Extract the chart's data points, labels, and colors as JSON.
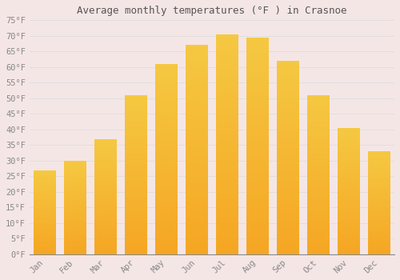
{
  "title": "Average monthly temperatures (°F ) in Crasnoe",
  "months": [
    "Jan",
    "Feb",
    "Mar",
    "Apr",
    "May",
    "Jun",
    "Jul",
    "Aug",
    "Sep",
    "Oct",
    "Nov",
    "Dec"
  ],
  "values": [
    27,
    30,
    37,
    51,
    61,
    67,
    70.5,
    69.5,
    62,
    51,
    40.5,
    33
  ],
  "bar_color_bottom": "#F5A623",
  "bar_color_top": "#F5C842",
  "background_color": "#F5E6E6",
  "grid_color": "#DDDDDD",
  "ylim": [
    0,
    75
  ],
  "yticks": [
    0,
    5,
    10,
    15,
    20,
    25,
    30,
    35,
    40,
    45,
    50,
    55,
    60,
    65,
    70,
    75
  ],
  "title_fontsize": 9,
  "tick_fontsize": 7.5,
  "title_color": "#555555",
  "tick_color": "#888888"
}
